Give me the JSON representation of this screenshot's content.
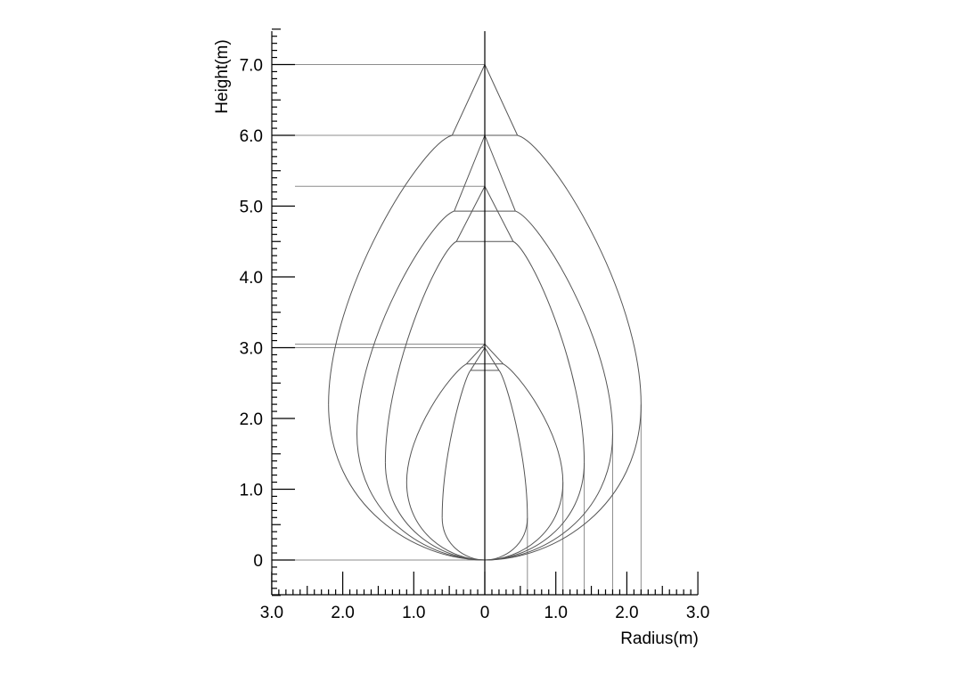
{
  "chart_data": {
    "type": "line",
    "title": "",
    "xlabel": "Radius(m)",
    "ylabel": "Height(m)",
    "xlim": [
      -3.0,
      3.0
    ],
    "ylim": [
      -0.5,
      7.5
    ],
    "grid": false,
    "legend": "none",
    "x_ticks": [
      {
        "value": -3.0,
        "label": "3.0"
      },
      {
        "value": -2.0,
        "label": "2.0"
      },
      {
        "value": -1.0,
        "label": "1.0"
      },
      {
        "value": 0,
        "label": "0"
      },
      {
        "value": 1.0,
        "label": "1.0"
      },
      {
        "value": 2.0,
        "label": "2.0"
      },
      {
        "value": 3.0,
        "label": "3.0"
      }
    ],
    "y_ticks": [
      {
        "value": 0,
        "label": "0"
      },
      {
        "value": 1.0,
        "label": "1.0"
      },
      {
        "value": 2.0,
        "label": "2.0"
      },
      {
        "value": 3.0,
        "label": "3.0"
      },
      {
        "value": 4.0,
        "label": "4.0"
      },
      {
        "value": 5.0,
        "label": "5.0"
      },
      {
        "value": 6.0,
        "label": "6.0"
      },
      {
        "value": 7.0,
        "label": "7.0"
      }
    ],
    "series": [
      {
        "max_radius": 2.2,
        "height_at_max_radius": 2.2,
        "cone_base_radius": 0.46,
        "cone_base_height": 6.0,
        "apex_height": 7.0
      },
      {
        "max_radius": 1.8,
        "height_at_max_radius": 1.78,
        "cone_base_radius": 0.43,
        "cone_base_height": 4.93,
        "apex_height": 6.0
      },
      {
        "max_radius": 1.4,
        "height_at_max_radius": 1.38,
        "cone_base_radius": 0.4,
        "cone_base_height": 4.5,
        "apex_height": 5.28
      },
      {
        "max_radius": 1.1,
        "height_at_max_radius": 1.1,
        "cone_base_radius": 0.26,
        "cone_base_height": 2.77,
        "apex_height": 3.05
      },
      {
        "max_radius": 0.6,
        "height_at_max_radius": 0.6,
        "cone_base_radius": 0.2,
        "cone_base_height": 2.68,
        "apex_height": 3.0
      }
    ]
  }
}
